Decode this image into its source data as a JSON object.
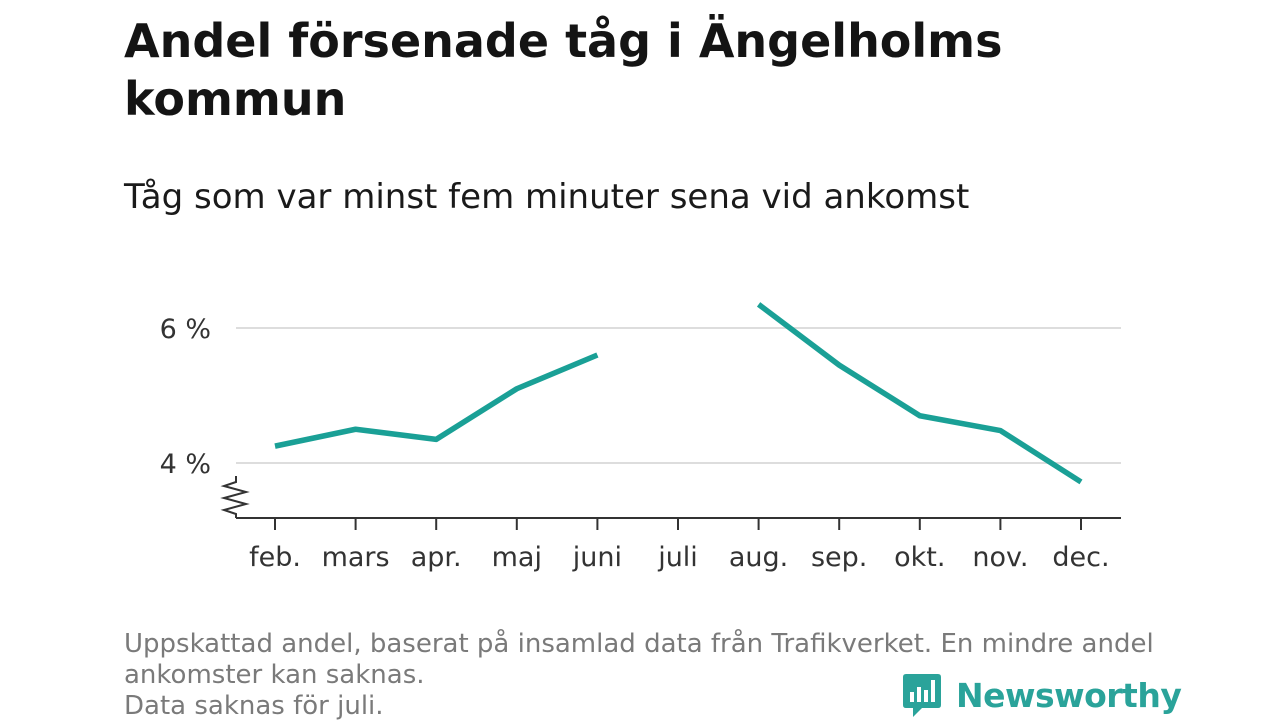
{
  "header": {
    "title": "Andel försenade tåg i Ängelholms kommun",
    "subtitle": "Tåg som var minst fem minuter sena vid ankomst"
  },
  "chart_data": {
    "type": "line",
    "categories": [
      "feb.",
      "mars",
      "apr.",
      "maj",
      "juni",
      "juli",
      "aug.",
      "sep.",
      "okt.",
      "nov.",
      "dec."
    ],
    "series": [
      {
        "values": [
          4.25,
          4.5,
          4.35,
          5.1,
          5.6,
          null,
          6.35,
          5.45,
          4.7,
          4.48,
          3.72
        ],
        "color": "#1aa096"
      }
    ],
    "yticks": [
      {
        "value": 4,
        "label": "4 %"
      },
      {
        "value": 6,
        "label": "6 %"
      }
    ],
    "ylim": [
      3.2,
      6.5
    ],
    "axis_break": true,
    "grid": true,
    "legend": "none"
  },
  "footer": {
    "note_line1": "Uppskattad andel, baserat på insamlad data från Trafikverket. En mindre andel",
    "note_line2": "ankomster kan saknas.",
    "note_line3": "Data saknas för juli.",
    "brand_name": "Newsworthy",
    "brand_color": "#2aa39a",
    "brand_icon": "bar-chart-speech-bubble-icon"
  }
}
